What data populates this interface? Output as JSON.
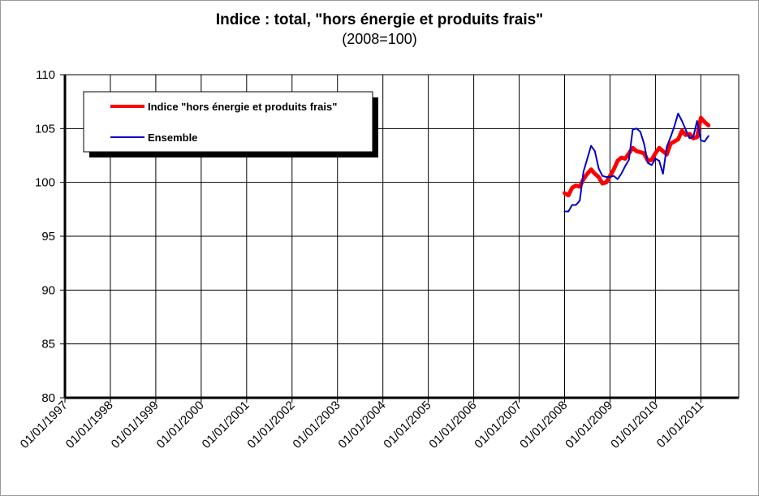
{
  "chart_data": {
    "type": "line",
    "title": "Indice : total, \"hors énergie et produits frais\"",
    "subtitle": "(2008=100)",
    "xlabel": "",
    "ylabel": "",
    "ylim": [
      80,
      110
    ],
    "yticks": [
      "80",
      "85",
      "90",
      "95",
      "100",
      "105",
      "110"
    ],
    "xticks": [
      "01/01/1997",
      "01/01/1998",
      "01/01/1999",
      "01/01/2000",
      "01/01/2001",
      "01/01/2002",
      "01/01/2003",
      "01/01/2004",
      "01/01/2005",
      "01/01/2006",
      "01/01/2007",
      "01/01/2008",
      "01/01/2009",
      "01/01/2010",
      "01/01/2011"
    ],
    "xlim": [
      "1997-01",
      "2011-11"
    ],
    "grid": true,
    "legend": "top-left",
    "series": [
      {
        "name": "Indice \"hors énergie et produits frais\"",
        "color": "#ff0000",
        "x": [
          "2008-01",
          "2008-02",
          "2008-03",
          "2008-04",
          "2008-05",
          "2008-06",
          "2008-07",
          "2008-08",
          "2008-09",
          "2008-10",
          "2008-11",
          "2008-12",
          "2009-01",
          "2009-02",
          "2009-03",
          "2009-04",
          "2009-05",
          "2009-06",
          "2009-07",
          "2009-08",
          "2009-09",
          "2009-10",
          "2009-11",
          "2009-12",
          "2010-01",
          "2010-02",
          "2010-03",
          "2010-04",
          "2010-05",
          "2010-06",
          "2010-07",
          "2010-08",
          "2010-09",
          "2010-10",
          "2010-11",
          "2010-12",
          "2011-01",
          "2011-02",
          "2011-03"
        ],
        "values": [
          99.0,
          98.8,
          99.5,
          99.7,
          99.6,
          100.3,
          100.8,
          101.2,
          100.8,
          100.5,
          99.9,
          100.0,
          100.6,
          101.2,
          102.0,
          102.3,
          102.2,
          102.7,
          103.2,
          102.9,
          102.8,
          102.7,
          102.0,
          102.1,
          102.7,
          103.2,
          102.9,
          102.6,
          103.6,
          103.8,
          104.0,
          104.8,
          104.4,
          104.5,
          104.1,
          104.2,
          106.0,
          105.6,
          105.3
        ]
      },
      {
        "name": "Ensemble",
        "color": "#0000cc",
        "x": [
          "2008-01",
          "2008-02",
          "2008-03",
          "2008-04",
          "2008-05",
          "2008-06",
          "2008-07",
          "2008-08",
          "2008-09",
          "2008-10",
          "2008-11",
          "2008-12",
          "2009-01",
          "2009-02",
          "2009-03",
          "2009-04",
          "2009-05",
          "2009-06",
          "2009-07",
          "2009-08",
          "2009-09",
          "2009-10",
          "2009-11",
          "2009-12",
          "2010-01",
          "2010-02",
          "2010-03",
          "2010-04",
          "2010-05",
          "2010-06",
          "2010-07",
          "2010-08",
          "2010-09",
          "2010-10",
          "2010-11",
          "2010-12",
          "2011-01",
          "2011-02",
          "2011-03"
        ],
        "values": [
          97.3,
          97.3,
          97.9,
          97.9,
          98.3,
          101.0,
          102.2,
          103.4,
          102.9,
          101.3,
          100.6,
          100.5,
          100.5,
          100.6,
          100.3,
          100.8,
          101.5,
          102.1,
          104.9,
          105.0,
          104.7,
          103.6,
          101.8,
          101.6,
          102.2,
          102.0,
          100.8,
          103.3,
          104.2,
          105.2,
          106.4,
          105.7,
          104.9,
          104.1,
          104.2,
          105.7,
          103.9,
          103.8,
          104.3
        ]
      }
    ]
  }
}
